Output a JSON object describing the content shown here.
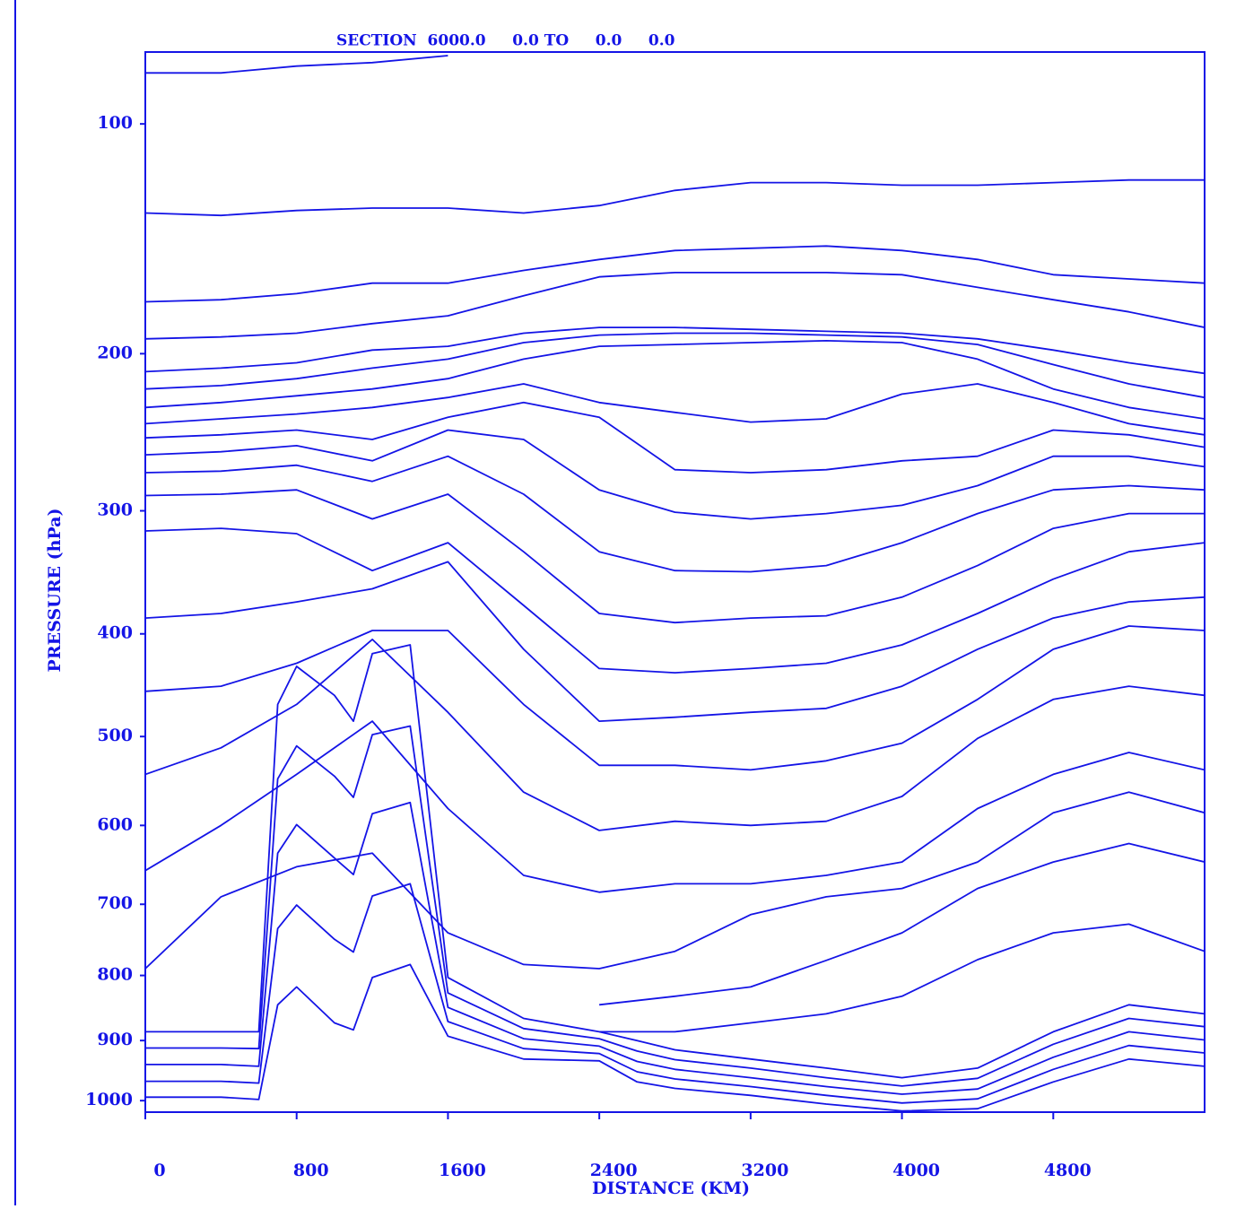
{
  "chart_data": {
    "type": "line",
    "title": "SECTION  6000.0     0.0 TO     0.0     0.0",
    "x_label": "DISTANCE (KM)",
    "y_label": "PRESSURE (hPa)",
    "color": "#1414e6",
    "xlim": [
      0,
      5600
    ],
    "xticks": [
      0,
      800,
      1600,
      2400,
      3200,
      4000,
      4800
    ],
    "ylim": [
      1020,
      78
    ],
    "yscale": "power",
    "yexponent": 0.286,
    "yticks": [
      100,
      200,
      300,
      400,
      500,
      600,
      700,
      800,
      900,
      1000
    ],
    "series": [
      {
        "x": [
          0,
          400,
          800,
          1200,
          1600
        ],
        "values": [
          84,
          84,
          82,
          81,
          79
        ]
      },
      {
        "x": [
          0,
          400,
          800,
          1200,
          1600,
          2000,
          2400,
          2800,
          3200,
          3600,
          4000,
          4400,
          4800,
          5200,
          5600
        ],
        "values": [
          133,
          134,
          132,
          131,
          131,
          133,
          130,
          124,
          121,
          121,
          122,
          122,
          121,
          120,
          120
        ]
      },
      {
        "x": [
          0,
          400,
          800,
          1200,
          1600,
          2000,
          2400,
          2800,
          3200,
          3600,
          4000,
          4400,
          4800,
          5200,
          5600
        ],
        "values": [
          173,
          172,
          169,
          164,
          164,
          158,
          153,
          149,
          148,
          147,
          149,
          153,
          160,
          162,
          164
        ]
      },
      {
        "x": [
          0,
          400,
          800,
          1200,
          1600,
          2000,
          2400,
          2800,
          3200,
          3600,
          4000,
          4400,
          4800,
          5200,
          5600
        ],
        "values": [
          192,
          191,
          189,
          184,
          180,
          170,
          161,
          159,
          159,
          159,
          160,
          166,
          172,
          178,
          186
        ]
      },
      {
        "x": [
          0,
          400,
          800,
          1200,
          1600,
          2000,
          2400,
          2800,
          3200,
          3600,
          4000,
          4400,
          4800,
          5200,
          5600
        ],
        "values": [
          210,
          208,
          205,
          198,
          196,
          189,
          186,
          186,
          187,
          188,
          189,
          192,
          198,
          205,
          211
        ]
      },
      {
        "x": [
          0,
          400,
          800,
          1200,
          1600,
          2000,
          2400,
          2800,
          3200,
          3600,
          4000,
          4400,
          4800,
          5200,
          5600
        ],
        "values": [
          220,
          218,
          214,
          208,
          203,
          194,
          190,
          189,
          189,
          190,
          191,
          195,
          206,
          217,
          225
        ]
      },
      {
        "x": [
          0,
          400,
          800,
          1200,
          1600,
          2000,
          2400,
          2800,
          3200,
          3600,
          4000,
          4400,
          4800,
          5200,
          5600
        ],
        "values": [
          231,
          228,
          224,
          220,
          214,
          203,
          196,
          195,
          194,
          193,
          194,
          203,
          220,
          231,
          238
        ]
      },
      {
        "x": [
          0,
          400,
          800,
          1200,
          1600,
          2000,
          2400,
          2800,
          3200,
          3600,
          4000,
          4400,
          4800,
          5200,
          5600
        ],
        "values": [
          241,
          238,
          235,
          231,
          225,
          217,
          228,
          234,
          240,
          238,
          223,
          217,
          228,
          241,
          248
        ]
      },
      {
        "x": [
          0,
          400,
          800,
          1200,
          1600,
          2000,
          2400,
          2800,
          3200,
          3600,
          4000,
          4400,
          4800,
          5200,
          5600
        ],
        "values": [
          250,
          248,
          245,
          251,
          237,
          228,
          237,
          271,
          273,
          271,
          265,
          262,
          245,
          248,
          256
        ]
      },
      {
        "x": [
          0,
          400,
          800,
          1200,
          1600,
          2000,
          2400,
          2800,
          3200,
          3600,
          4000,
          4400,
          4800,
          5200,
          5600
        ],
        "values": [
          261,
          259,
          255,
          265,
          245,
          251,
          285,
          301,
          306,
          302,
          296,
          282,
          262,
          262,
          269
        ]
      },
      {
        "x": [
          0,
          400,
          800,
          1200,
          1600,
          2000,
          2400,
          2800,
          3200,
          3600,
          4000,
          4400,
          4800,
          5200,
          5600
        ],
        "values": [
          273,
          272,
          268,
          279,
          262,
          288,
          331,
          346,
          347,
          342,
          324,
          302,
          285,
          282,
          285
        ]
      },
      {
        "x": [
          0,
          400,
          800,
          1200,
          1600,
          2000,
          2400,
          2800,
          3200,
          3600,
          4000,
          4400,
          4800,
          5200,
          5600
        ],
        "values": [
          289,
          288,
          285,
          306,
          288,
          331,
          382,
          390,
          386,
          384,
          368,
          342,
          313,
          302,
          302
        ]
      },
      {
        "x": [
          0,
          400,
          800,
          1200,
          1600,
          2000,
          2400,
          2800,
          3200,
          3600,
          4000,
          4400,
          4800,
          5200,
          5600
        ],
        "values": [
          315,
          313,
          317,
          346,
          324,
          375,
          432,
          436,
          432,
          427,
          410,
          382,
          353,
          331,
          324
        ]
      },
      {
        "x": [
          0,
          400,
          800,
          1200,
          1600,
          2000,
          2400,
          2800,
          3200,
          3600,
          4000,
          4400,
          4800,
          5200,
          5600
        ],
        "values": [
          386,
          382,
          372,
          361,
          339,
          414,
          484,
          480,
          475,
          471,
          449,
          414,
          386,
          372,
          368
        ]
      },
      {
        "x": [
          0,
          400,
          800,
          1200,
          1600,
          2000,
          2400,
          2800,
          3200,
          3600,
          4000,
          4400,
          4800,
          5200,
          5600
        ],
        "values": [
          454,
          449,
          427,
          397,
          397,
          467,
          531,
          531,
          536,
          526,
          507,
          462,
          414,
          393,
          397
        ]
      },
      {
        "x": [
          0,
          400,
          800,
          1200,
          1600,
          2000,
          2400,
          2800,
          3200,
          3600,
          4000,
          4400,
          4800,
          5200,
          5600
        ],
        "values": [
          541,
          512,
          467,
          405,
          475,
          561,
          606,
          595,
          600,
          595,
          566,
          502,
          462,
          449,
          458
        ]
      },
      {
        "x": [
          0,
          400,
          800,
          1200,
          1600,
          2000,
          2400,
          2800,
          3200,
          3600,
          4000,
          4400,
          4800,
          5200,
          5600
        ],
        "values": [
          656,
          600,
          541,
          484,
          580,
          662,
          684,
          673,
          673,
          662,
          645,
          580,
          541,
          517,
          536
        ]
      },
      {
        "x": [
          0,
          400,
          800,
          1200,
          1600,
          2000,
          2400,
          2800,
          3200,
          3600,
          4000,
          4400,
          4800,
          5200,
          5600
        ],
        "values": [
          790,
          690,
          651,
          634,
          739,
          784,
          790,
          765,
          714,
          690,
          679,
          645,
          585,
          561,
          585
        ]
      },
      {
        "x": [
          2400,
          2800,
          3200,
          3600,
          4000,
          4400,
          4800,
          5200,
          5600
        ],
        "values": [
          844,
          831,
          817,
          778,
          739,
          679,
          645,
          622,
          645
        ]
      },
      {
        "x": [
          2400,
          2800,
          3200,
          3600,
          4000,
          4400,
          4800,
          5200,
          5600
        ],
        "values": [
          886,
          886,
          872,
          858,
          831,
          777,
          739,
          727,
          765
        ]
      },
      {
        "x": [
          0,
          400,
          600,
          700,
          800,
          1000,
          1100,
          1200,
          1400,
          1600,
          2000,
          2400,
          2600,
          2800,
          3200,
          3600,
          4000,
          4400,
          4800,
          5200,
          5600
        ],
        "values": [
          886,
          886,
          886,
          467,
          430,
          458,
          484,
          418,
          410,
          803,
          865,
          886,
          900,
          915,
          930,
          945,
          961,
          945,
          886,
          844,
          858
        ]
      },
      {
        "x": [
          0,
          400,
          600,
          700,
          800,
          1000,
          1100,
          1200,
          1400,
          1600,
          2000,
          2400,
          2600,
          2800,
          3200,
          3600,
          4000,
          4400,
          4800,
          5200,
          5600
        ],
        "values": [
          912,
          912,
          913,
          546,
          510,
          543,
          567,
          498,
          489,
          826,
          881,
          897,
          917,
          931,
          945,
          961,
          975,
          962,
          906,
          865,
          878
        ]
      },
      {
        "x": [
          0,
          400,
          600,
          700,
          800,
          1000,
          1100,
          1200,
          1400,
          1600,
          2000,
          2400,
          2600,
          2800,
          3200,
          3600,
          4000,
          4400,
          4800,
          5200,
          5600
        ],
        "values": [
          939,
          939,
          942,
          634,
          599,
          640,
          661,
          586,
          573,
          848,
          897,
          909,
          934,
          947,
          961,
          976,
          989,
          980,
          927,
          886,
          899
        ]
      },
      {
        "x": [
          0,
          400,
          600,
          700,
          800,
          1000,
          1100,
          1200,
          1400,
          1600,
          2000,
          2400,
          2600,
          2800,
          3200,
          3600,
          4000,
          4400,
          4800,
          5200,
          5600
        ],
        "values": [
          967,
          967,
          970,
          733,
          701,
          748,
          766,
          689,
          673,
          870,
          913,
          921,
          951,
          963,
          976,
          991,
          1004,
          997,
          947,
          908,
          920
        ]
      },
      {
        "x": [
          0,
          400,
          600,
          700,
          800,
          1000,
          1100,
          1200,
          1400,
          1600,
          2000,
          2400,
          2600,
          2800,
          3200,
          3600,
          4000,
          4400,
          4800,
          5200,
          5600
        ],
        "values": [
          994,
          994,
          998,
          844,
          817,
          872,
          883,
          803,
          784,
          893,
          930,
          933,
          968,
          979,
          991,
          1006,
          1018,
          1014,
          968,
          930,
          942
        ]
      }
    ]
  }
}
